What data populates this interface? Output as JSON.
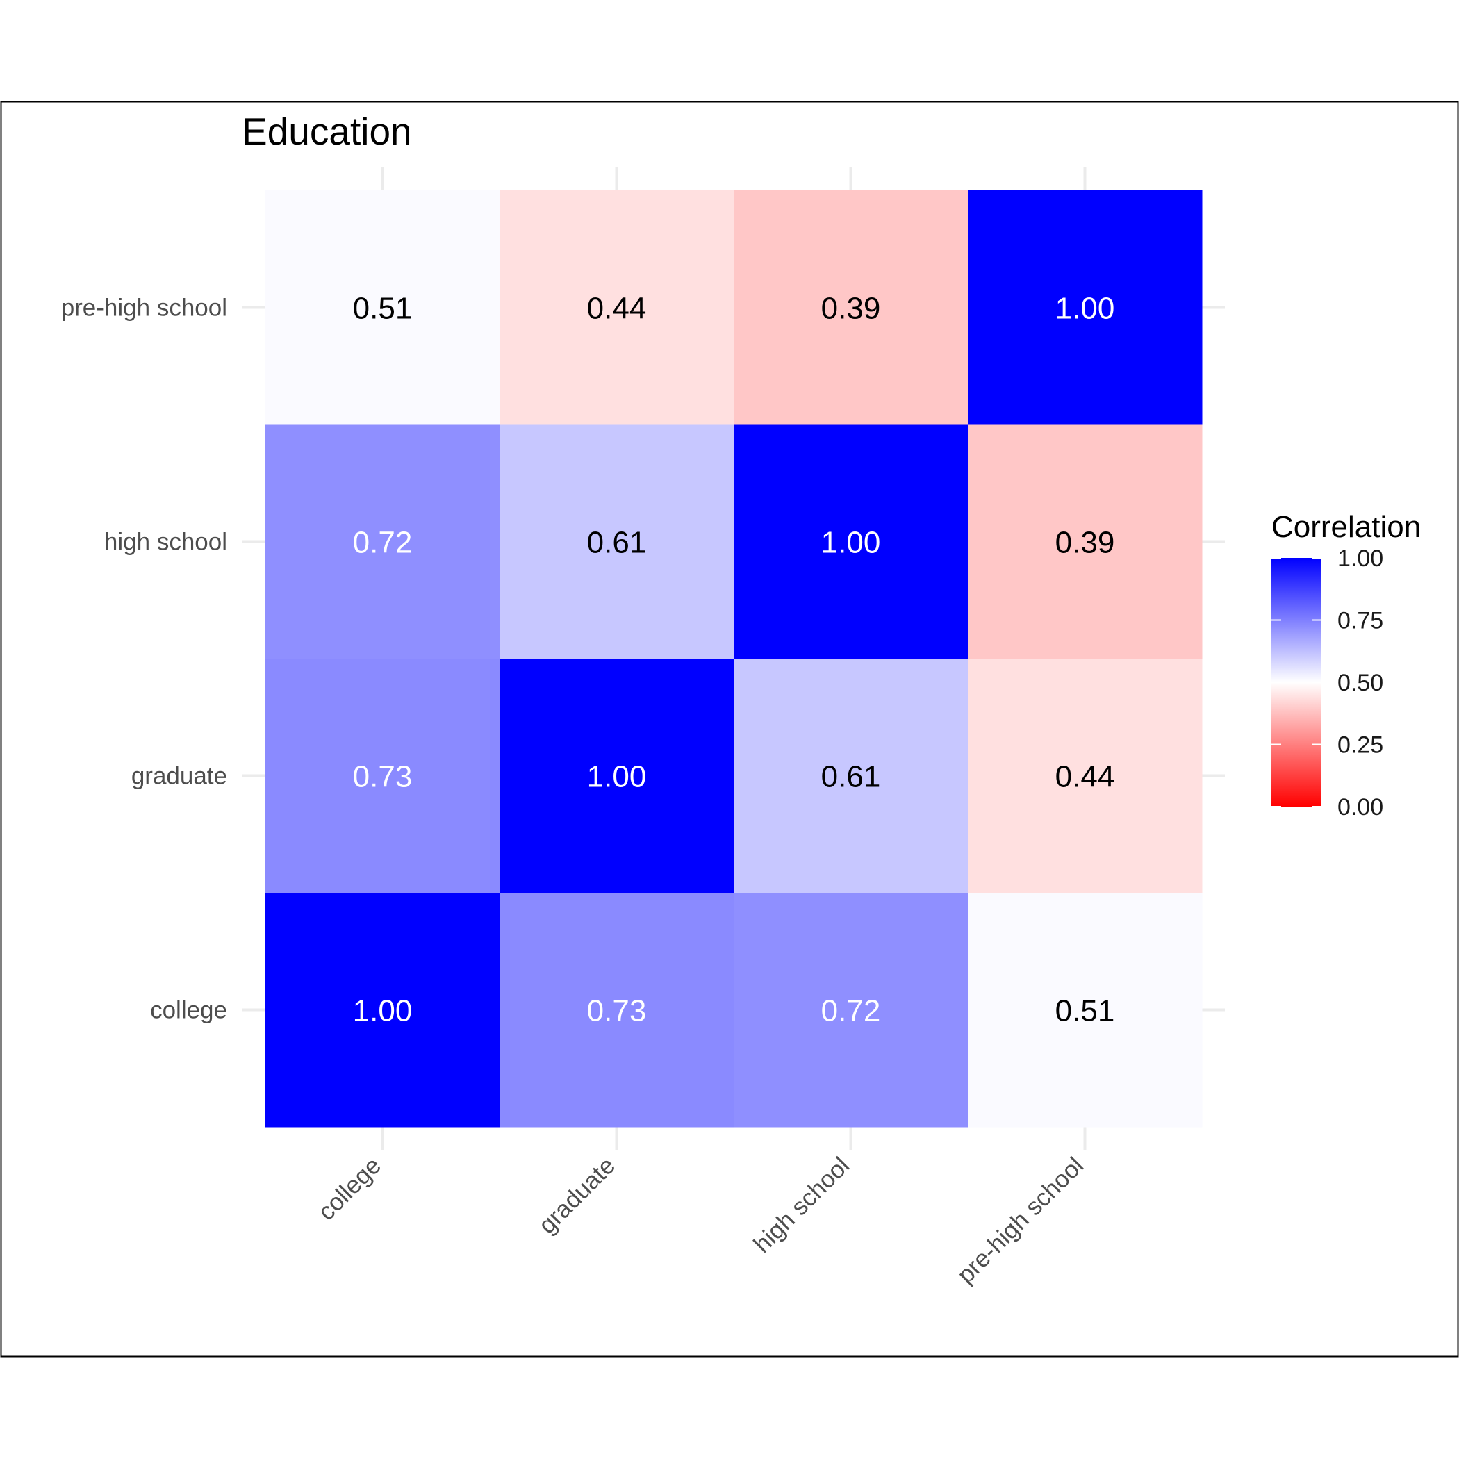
{
  "chart_data": {
    "type": "heatmap",
    "title": "Education",
    "x_categories": [
      "college",
      "graduate",
      "high school",
      "pre-high school"
    ],
    "y_categories": [
      "college",
      "graduate",
      "high school",
      "pre-high school"
    ],
    "values": [
      [
        1.0,
        0.73,
        0.72,
        0.51
      ],
      [
        0.73,
        1.0,
        0.61,
        0.44
      ],
      [
        0.72,
        0.61,
        1.0,
        0.39
      ],
      [
        0.51,
        0.44,
        0.39,
        1.0
      ]
    ],
    "value_labels": [
      [
        "1.00",
        "0.73",
        "0.72",
        "0.51"
      ],
      [
        "0.73",
        "1.00",
        "0.61",
        "0.44"
      ],
      [
        "0.72",
        "0.61",
        "1.00",
        "0.39"
      ],
      [
        "0.51",
        "0.44",
        "0.39",
        "1.00"
      ]
    ],
    "legend": {
      "title": "Correlation",
      "ticks": [
        1.0,
        0.75,
        0.5,
        0.25,
        0.0
      ],
      "tick_labels": [
        "1.00",
        "0.75",
        "0.50",
        "0.25",
        "0.00"
      ],
      "range": [
        0,
        1
      ],
      "placement": "right"
    },
    "color_scale": {
      "low": "#ff0000",
      "mid": "#ffffff",
      "high": "#0000ff",
      "midpoint": 0.5
    },
    "grid": true
  }
}
